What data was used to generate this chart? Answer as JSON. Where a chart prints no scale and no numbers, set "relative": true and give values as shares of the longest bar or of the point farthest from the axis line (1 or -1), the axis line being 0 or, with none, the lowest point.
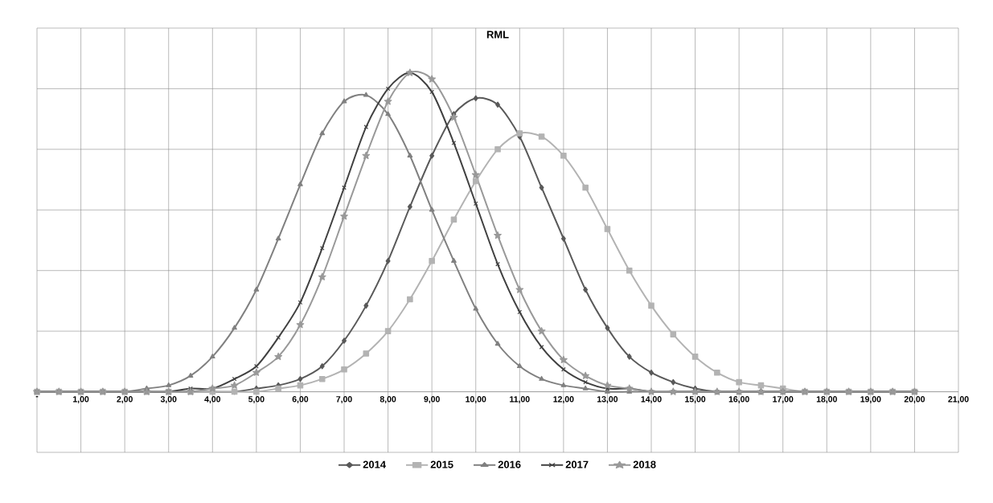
{
  "chart_data": {
    "type": "line",
    "title": "RML",
    "relative": true,
    "grid": true,
    "legend": "bottom",
    "line_style": "solid",
    "x": [
      0,
      0.5,
      1,
      1.5,
      2,
      2.5,
      3,
      3.5,
      4,
      4.5,
      5,
      5.5,
      6,
      6.5,
      7,
      7.5,
      8,
      8.5,
      9,
      9.5,
      10,
      10.5,
      11,
      11.5,
      12,
      12.5,
      13,
      13.5,
      14,
      14.5,
      15,
      15.5,
      16,
      16.5,
      17,
      17.5,
      18,
      18.5,
      19,
      19.5,
      20
    ],
    "xlim": [
      0,
      21
    ],
    "xticks": [
      {
        "value": 0,
        "label": "-"
      },
      {
        "value": 1,
        "label": "1,00"
      },
      {
        "value": 2,
        "label": "2,00"
      },
      {
        "value": 3,
        "label": "3,00"
      },
      {
        "value": 4,
        "label": "4,00"
      },
      {
        "value": 5,
        "label": "5,00"
      },
      {
        "value": 6,
        "label": "6,00"
      },
      {
        "value": 7,
        "label": "7,00"
      },
      {
        "value": 8,
        "label": "8,00"
      },
      {
        "value": 9,
        "label": "9,00"
      },
      {
        "value": 10,
        "label": "10,00"
      },
      {
        "value": 11,
        "label": "11,00"
      },
      {
        "value": 12,
        "label": "12,00"
      },
      {
        "value": 13,
        "label": "13,00"
      },
      {
        "value": 14,
        "label": "14,00"
      },
      {
        "value": 15,
        "label": "15,00"
      },
      {
        "value": 16,
        "label": "16,00"
      },
      {
        "value": 17,
        "label": "17,00"
      },
      {
        "value": 18,
        "label": "18,00"
      },
      {
        "value": 19,
        "label": "19,00"
      },
      {
        "value": 20,
        "label": "20,00"
      },
      {
        "value": 21,
        "label": "21,00"
      }
    ],
    "series": [
      {
        "name": "2014",
        "color": "#595959",
        "marker": "diamond",
        "values": [
          0,
          0,
          0,
          0,
          0,
          0,
          0,
          0,
          0,
          0,
          0.01,
          0.02,
          0.04,
          0.08,
          0.16,
          0.27,
          0.41,
          0.58,
          0.74,
          0.87,
          0.92,
          0.9,
          0.8,
          0.64,
          0.48,
          0.32,
          0.2,
          0.11,
          0.06,
          0.03,
          0.01,
          0,
          0,
          0,
          0,
          0,
          0,
          0,
          0,
          0,
          0
        ]
      },
      {
        "name": "2015",
        "color": "#b3b3b3",
        "marker": "square",
        "values": [
          0,
          0,
          0,
          0,
          0,
          0,
          0,
          0,
          0,
          0,
          0,
          0.01,
          0.02,
          0.04,
          0.07,
          0.12,
          0.19,
          0.29,
          0.41,
          0.54,
          0.66,
          0.76,
          0.81,
          0.8,
          0.74,
          0.64,
          0.51,
          0.38,
          0.27,
          0.18,
          0.11,
          0.06,
          0.03,
          0.02,
          0.01,
          0,
          0,
          0,
          0,
          0,
          0
        ]
      },
      {
        "name": "2016",
        "color": "#808080",
        "marker": "triangle",
        "values": [
          0,
          0,
          0,
          0,
          0,
          0.01,
          0.02,
          0.05,
          0.11,
          0.2,
          0.32,
          0.48,
          0.65,
          0.81,
          0.91,
          0.93,
          0.87,
          0.74,
          0.57,
          0.41,
          0.26,
          0.15,
          0.08,
          0.04,
          0.02,
          0.01,
          0,
          0,
          0,
          0,
          0,
          0,
          0,
          0,
          0,
          0,
          0,
          0,
          0,
          0,
          0
        ]
      },
      {
        "name": "2017",
        "color": "#404040",
        "marker": "cross",
        "values": [
          0,
          0,
          0,
          0,
          0,
          0,
          0,
          0.01,
          0.01,
          0.04,
          0.08,
          0.17,
          0.28,
          0.45,
          0.64,
          0.83,
          0.95,
          1.0,
          0.94,
          0.78,
          0.59,
          0.4,
          0.25,
          0.14,
          0.07,
          0.03,
          0.01,
          0.01,
          0,
          0,
          0,
          0,
          0,
          0,
          0,
          0,
          0,
          0,
          0,
          0,
          0
        ]
      },
      {
        "name": "2018",
        "color": "#999999",
        "marker": "star",
        "values": [
          0,
          0,
          0,
          0,
          0,
          0,
          0,
          0,
          0.01,
          0.02,
          0.06,
          0.11,
          0.21,
          0.36,
          0.55,
          0.74,
          0.91,
          1.0,
          0.98,
          0.86,
          0.68,
          0.49,
          0.32,
          0.19,
          0.1,
          0.05,
          0.02,
          0.01,
          0,
          0,
          0,
          0,
          0,
          0,
          0,
          0,
          0,
          0,
          0,
          0,
          0
        ]
      }
    ]
  }
}
